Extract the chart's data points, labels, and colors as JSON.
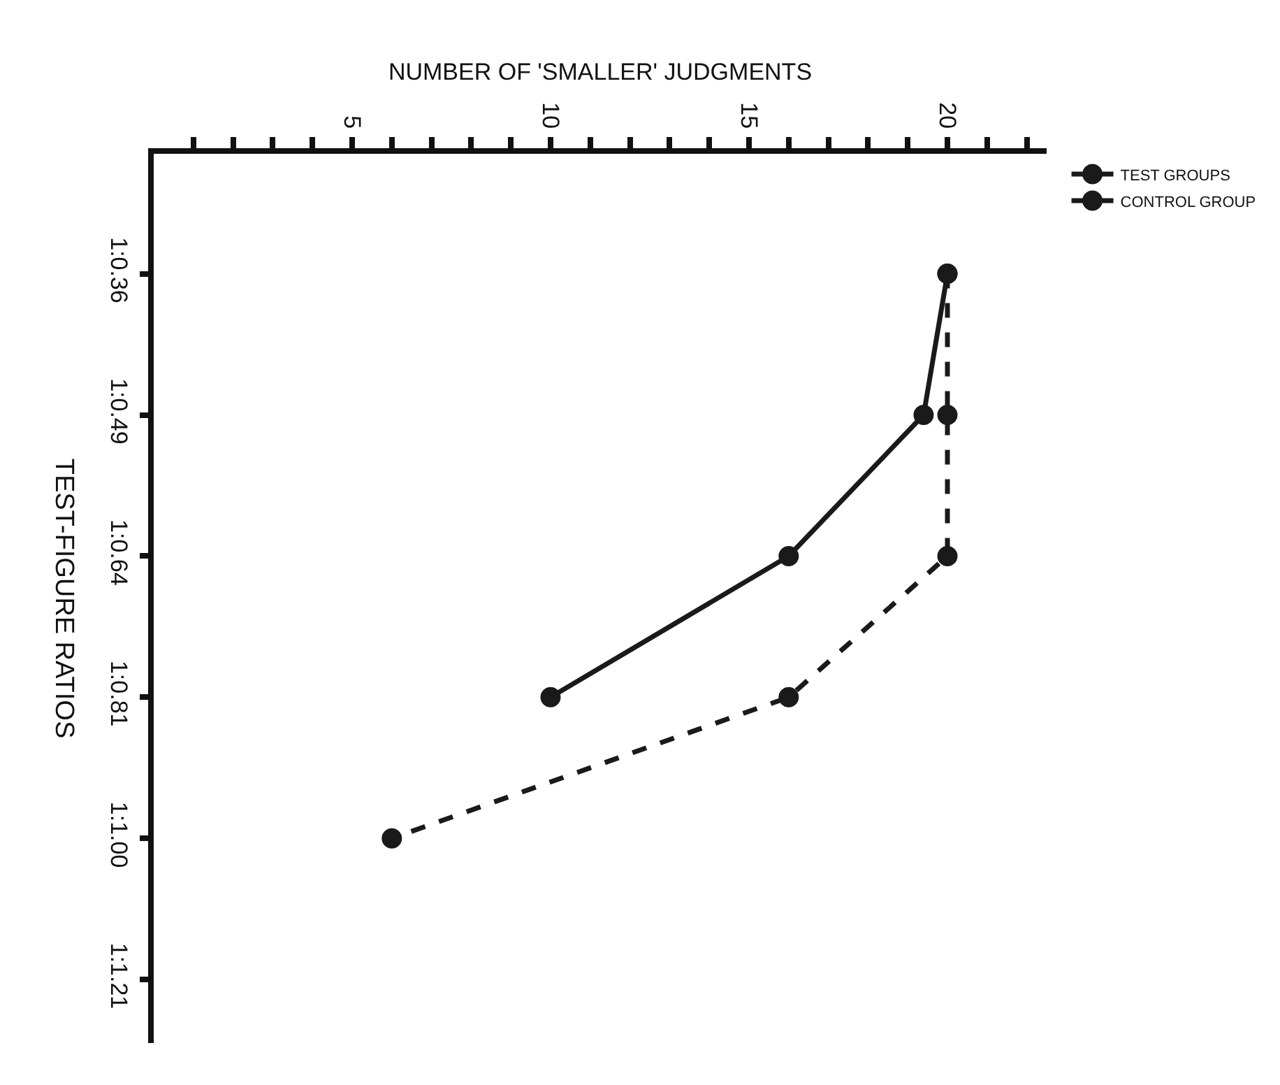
{
  "chart_data": {
    "type": "line",
    "orientation": "horizontal",
    "xlabel": "NUMBER OF 'SMALLER' JUDGMENTS",
    "ylabel": "TEST-FIGURE RATIOS",
    "categories": [
      "1:0.36",
      "1:0.49",
      "1:0.64",
      "1:0.81",
      "1:1.00",
      "1:1.21"
    ],
    "xlim": [
      0,
      22.5
    ],
    "xticks": [
      {
        "value": 1,
        "label": null
      },
      {
        "value": 2,
        "label": null
      },
      {
        "value": 3,
        "label": null
      },
      {
        "value": 4,
        "label": null
      },
      5,
      {
        "value": 6,
        "label": null
      },
      {
        "value": 7,
        "label": null
      },
      {
        "value": 8,
        "label": null
      },
      {
        "value": 9,
        "label": null
      },
      10,
      {
        "value": 11,
        "label": null
      },
      {
        "value": 12,
        "label": null
      },
      {
        "value": 13,
        "label": null
      },
      {
        "value": 14,
        "label": null
      },
      15,
      {
        "value": 16,
        "label": null
      },
      {
        "value": 17,
        "label": null
      },
      {
        "value": 18,
        "label": null
      },
      {
        "value": 19,
        "label": null
      },
      20,
      {
        "value": 21,
        "label": null
      },
      {
        "value": 22,
        "label": null
      }
    ],
    "series": [
      {
        "name": "TEST GROUPS",
        "color": "#1a1a1a",
        "line_style": "solid",
        "values": [
          20,
          19.4,
          16,
          10,
          null,
          null
        ]
      },
      {
        "name": "CONTROL GROUP",
        "color": "#1a1a1a",
        "line_style": "dashed",
        "values": [
          20,
          20,
          20,
          16,
          6,
          null
        ]
      }
    ],
    "marker": "circle",
    "legend": "top right"
  }
}
